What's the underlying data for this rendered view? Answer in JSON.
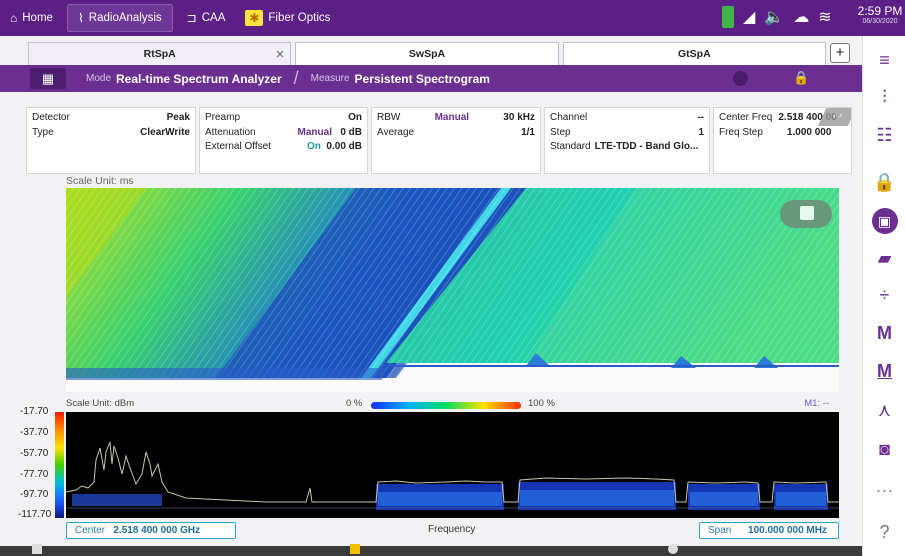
{
  "topbar": {
    "nav": [
      {
        "label": "Home",
        "icon": "home-icon"
      },
      {
        "label": "RadioAnalysis",
        "icon": "pulse-icon"
      },
      {
        "label": "CAA",
        "icon": "caa-icon"
      },
      {
        "label": "Fiber Optics",
        "icon": "fiber-icon"
      }
    ],
    "time": "2:59 PM",
    "date": "06/30/2020"
  },
  "tabs": [
    {
      "label": "RtSpA"
    },
    {
      "label": "SwSpA"
    },
    {
      "label": "GtSpA"
    }
  ],
  "tab_add": "+",
  "tab_close": "×",
  "modebar": {
    "mode_label": "Mode",
    "mode_value": "Real-time Spectrum Analyzer",
    "measure_label": "Measure",
    "measure_value": "Persistent Spectrogram"
  },
  "info": {
    "detector_label": "Detector",
    "detector_value": "Peak",
    "type_label": "Type",
    "type_value": "ClearWrite",
    "preamp_label": "Preamp",
    "preamp_value": "On",
    "attenuation_label": "Attenuation",
    "attenuation_mode": "Manual",
    "attenuation_value": "0 dB",
    "ext_offset_label": "External Offset",
    "ext_offset_state": "On",
    "ext_offset_value": "0.00 dB",
    "rbw_label": "RBW",
    "rbw_mode": "Manual",
    "rbw_value": "30 kHz",
    "average_label": "Average",
    "average_value": "1/1",
    "channel_label": "Channel",
    "channel_value": "--",
    "step_label": "Step",
    "step_value": "1",
    "standard_label": "Standard",
    "standard_value": "LTE-TDD - Band Glo...",
    "center_freq_label": "Center Freq",
    "center_freq_value": "2.518 400 00",
    "freq_step_label": "Freq Step",
    "freq_step_value": "1.000 000"
  },
  "spectrogram": {
    "scale_unit": "Scale Unit: ms"
  },
  "trace": {
    "scale_unit": "Scale Unit: dBm",
    "legend_min": "0 %",
    "legend_max": "100 %",
    "marker": "M1: --",
    "y_ticks": [
      "-17.70",
      "-37.70",
      "-57.70",
      "-77.70",
      "-97.70",
      "-117.70"
    ]
  },
  "footer": {
    "center_label": "Center",
    "center_value": "2.518 400 000 GHz",
    "axis_label": "Frequency",
    "span_label": "Span",
    "span_value": "100.000 000 MHz"
  },
  "colors": {
    "brand": "#5b1f86",
    "accent": "#6a2f91",
    "teal": "#1b9aa0"
  }
}
